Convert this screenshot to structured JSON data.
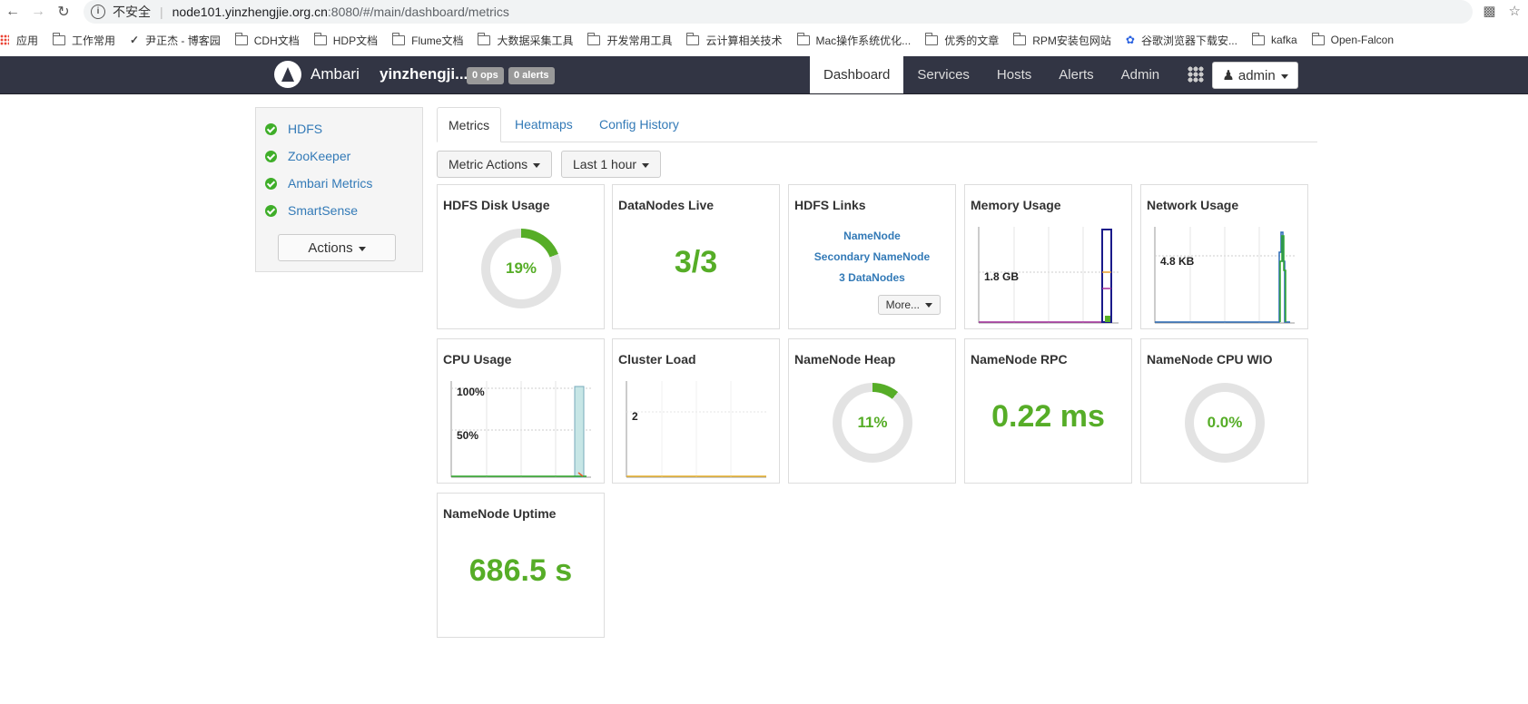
{
  "browser": {
    "insecure_label": "不安全",
    "url_host": "node101.yinzhengjie.org.cn",
    "url_path": ":8080/#/main/dashboard/metrics",
    "bookmarks": [
      "应用",
      "工作常用",
      "尹正杰 - 博客园",
      "CDH文档",
      "HDP文档",
      "Flume文档",
      "大数据采集工具",
      "开发常用工具",
      "云计算相关技术",
      "Mac操作系统优化...",
      "优秀的文章",
      "RPM安装包网站",
      "谷歌浏览器下载安...",
      "kafka",
      "Open-Falcon"
    ]
  },
  "header": {
    "brand": "Ambari",
    "cluster_name": "yinzhengji...",
    "ops_badge": "0 ops",
    "alerts_badge": "0 alerts",
    "nav": [
      "Dashboard",
      "Services",
      "Hosts",
      "Alerts",
      "Admin"
    ],
    "active_nav": "Dashboard",
    "user_label": "admin"
  },
  "sidebar": {
    "services": [
      "HDFS",
      "ZooKeeper",
      "Ambari Metrics",
      "SmartSense"
    ],
    "actions_label": "Actions"
  },
  "tabs": [
    "Metrics",
    "Heatmaps",
    "Config History"
  ],
  "toolbar": {
    "metric_actions": "Metric Actions",
    "time_range": "Last 1 hour"
  },
  "widgets": {
    "hdfs_disk": {
      "title": "HDFS Disk Usage",
      "label": "19%",
      "fraction": 0.19
    },
    "datanodes": {
      "title": "DataNodes Live",
      "value": "3/3"
    },
    "hdfs_links": {
      "title": "HDFS Links",
      "links": [
        "NameNode",
        "Secondary NameNode",
        "3 DataNodes"
      ],
      "more_label": "More..."
    },
    "memory": {
      "title": "Memory Usage",
      "tick_label": "1.8 GB"
    },
    "network": {
      "title": "Network Usage",
      "tick_label": "4.8 KB"
    },
    "cpu": {
      "title": "CPU Usage",
      "tick_labels": [
        "100%",
        "50%"
      ]
    },
    "cluster_load": {
      "title": "Cluster Load",
      "tick_label": "2"
    },
    "namenode_heap": {
      "title": "NameNode Heap",
      "label": "11%",
      "fraction": 0.11
    },
    "namenode_rpc": {
      "title": "NameNode RPC",
      "value": "0.22 ms"
    },
    "namenode_cpu_wio": {
      "title": "NameNode CPU WIO",
      "label": "0.0%",
      "fraction": 0.0
    },
    "namenode_uptime": {
      "title": "NameNode Uptime",
      "value": "686.5 s"
    }
  },
  "colors": {
    "accent_green": "#56ad27",
    "link_blue": "#337ab7",
    "topbar": "#323544"
  }
}
